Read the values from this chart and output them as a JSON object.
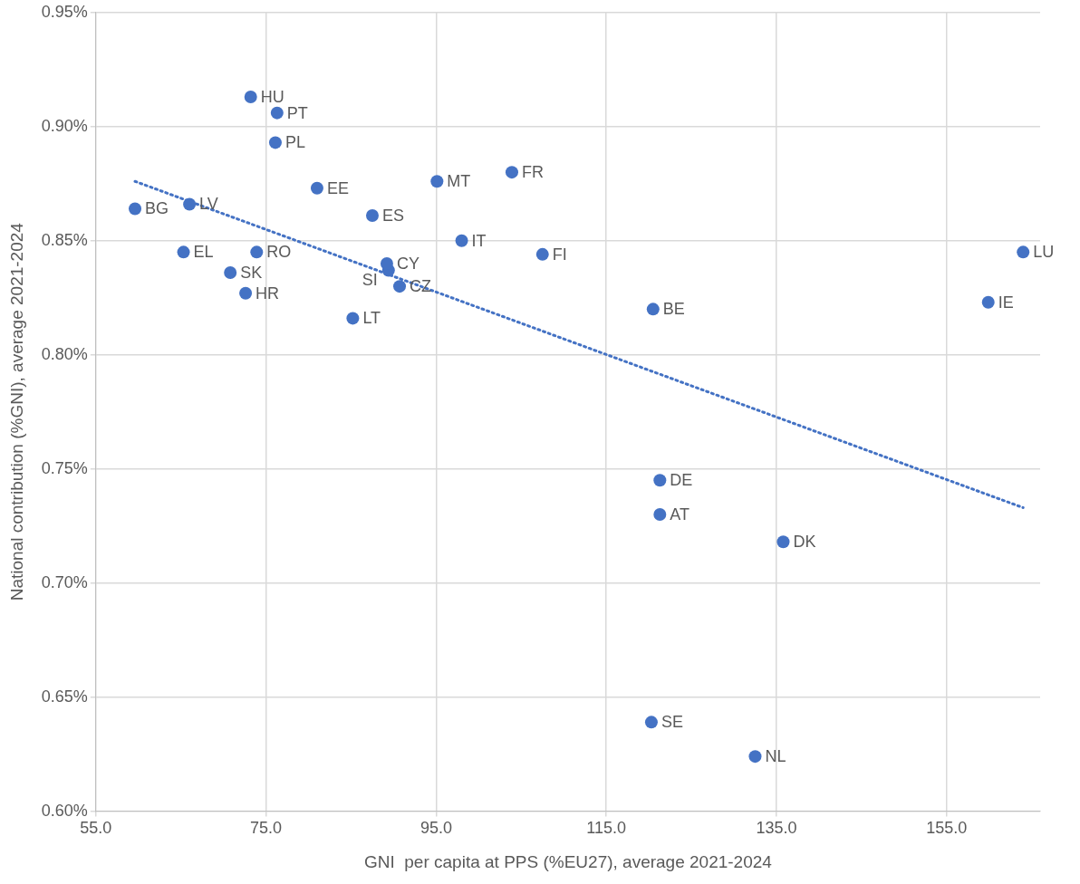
{
  "chart_data": {
    "type": "scatter",
    "xlabel": "GNI  per capita at PPS (%EU27), average 2021-2024",
    "ylabel": "National contribution (%GNI), average 2021-2024",
    "xlim": [
      55,
      166
    ],
    "ylim": [
      0.6,
      0.95
    ],
    "xticks": [
      {
        "value": 55,
        "label": "55.0"
      },
      {
        "value": 75,
        "label": "75.0"
      },
      {
        "value": 95,
        "label": "95.0"
      },
      {
        "value": 115,
        "label": "115.0"
      },
      {
        "value": 135,
        "label": "135.0"
      },
      {
        "value": 155,
        "label": "155.0"
      }
    ],
    "yticks": [
      {
        "value": 0.6,
        "label": "0.60%"
      },
      {
        "value": 0.65,
        "label": "0.65%"
      },
      {
        "value": 0.7,
        "label": "0.70%"
      },
      {
        "value": 0.75,
        "label": "0.75%"
      },
      {
        "value": 0.8,
        "label": "0.80%"
      },
      {
        "value": 0.85,
        "label": "0.85%"
      },
      {
        "value": 0.9,
        "label": "0.90%"
      },
      {
        "value": 0.95,
        "label": "0.95%"
      }
    ],
    "grid": true,
    "legend": false,
    "marker": "circle",
    "series": [
      {
        "name": "HU",
        "color": "#4472c4",
        "x": [
          73.2
        ],
        "values": [
          0.913
        ]
      },
      {
        "name": "PT",
        "color": "#4472c4",
        "x": [
          76.3
        ],
        "values": [
          0.906
        ]
      },
      {
        "name": "PL",
        "color": "#4472c4",
        "x": [
          76.1
        ],
        "values": [
          0.893
        ]
      },
      {
        "name": "EE",
        "color": "#4472c4",
        "x": [
          81.0
        ],
        "values": [
          0.873
        ]
      },
      {
        "name": "FR",
        "color": "#4472c4",
        "x": [
          103.9
        ],
        "values": [
          0.88
        ]
      },
      {
        "name": "MT",
        "color": "#4472c4",
        "x": [
          95.1
        ],
        "values": [
          0.876
        ]
      },
      {
        "name": "ES",
        "color": "#4472c4",
        "x": [
          87.5
        ],
        "values": [
          0.861
        ]
      },
      {
        "name": "BG",
        "color": "#4472c4",
        "x": [
          59.6
        ],
        "values": [
          0.864
        ]
      },
      {
        "name": "LV",
        "color": "#4472c4",
        "x": [
          66.0
        ],
        "values": [
          0.866
        ]
      },
      {
        "name": "IT",
        "color": "#4472c4",
        "x": [
          98.0
        ],
        "values": [
          0.85
        ]
      },
      {
        "name": "EL",
        "color": "#4472c4",
        "x": [
          65.3
        ],
        "values": [
          0.845
        ]
      },
      {
        "name": "RO",
        "color": "#4472c4",
        "x": [
          73.9
        ],
        "values": [
          0.845
        ]
      },
      {
        "name": "CY",
        "color": "#4472c4",
        "x": [
          89.2
        ],
        "values": [
          0.84
        ]
      },
      {
        "name": "SI",
        "color": "#4472c4",
        "x": [
          89.4
        ],
        "values": [
          0.837
        ]
      },
      {
        "name": "CZ",
        "color": "#4472c4",
        "x": [
          90.7
        ],
        "values": [
          0.83
        ]
      },
      {
        "name": "FI",
        "color": "#4472c4",
        "x": [
          107.5
        ],
        "values": [
          0.844
        ]
      },
      {
        "name": "SK",
        "color": "#4472c4",
        "x": [
          70.8
        ],
        "values": [
          0.836
        ]
      },
      {
        "name": "HR",
        "color": "#4472c4",
        "x": [
          72.6
        ],
        "values": [
          0.827
        ]
      },
      {
        "name": "LT",
        "color": "#4472c4",
        "x": [
          85.2
        ],
        "values": [
          0.816
        ]
      },
      {
        "name": "BE",
        "color": "#4472c4",
        "x": [
          120.5
        ],
        "values": [
          0.82
        ]
      },
      {
        "name": "LU",
        "color": "#4472c4",
        "x": [
          164.0
        ],
        "values": [
          0.845
        ]
      },
      {
        "name": "IE",
        "color": "#4472c4",
        "x": [
          159.9
        ],
        "values": [
          0.823
        ]
      },
      {
        "name": "DE",
        "color": "#4472c4",
        "x": [
          121.3
        ],
        "values": [
          0.745
        ]
      },
      {
        "name": "AT",
        "color": "#4472c4",
        "x": [
          121.3
        ],
        "values": [
          0.73
        ]
      },
      {
        "name": "DK",
        "color": "#4472c4",
        "x": [
          135.8
        ],
        "values": [
          0.718
        ]
      },
      {
        "name": "SE",
        "color": "#4472c4",
        "x": [
          120.3
        ],
        "values": [
          0.639
        ]
      },
      {
        "name": "NL",
        "color": "#4472c4",
        "x": [
          132.5
        ],
        "values": [
          0.624
        ]
      },
      {
        "type": "line",
        "color": "#4472c4",
        "line_style": "dotted",
        "marker": "none",
        "x": [
          59.6,
          164.0
        ],
        "values": [
          0.876,
          0.733
        ]
      }
    ]
  }
}
